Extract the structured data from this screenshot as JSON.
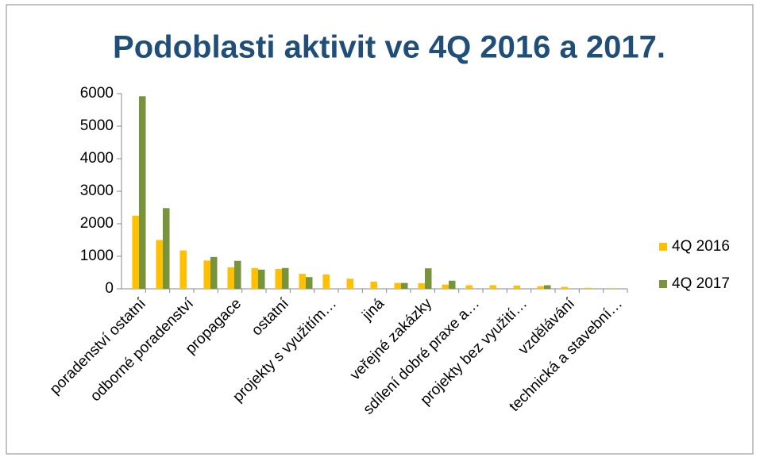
{
  "chart_data": {
    "type": "bar",
    "title": "Podoblasti aktivit ve 4Q 2016 a 2017.",
    "categories": [
      "poradenství ostatní",
      null,
      "odborné poradenství",
      null,
      "propagace",
      null,
      "ostatní",
      null,
      "projekty s využitím…",
      null,
      "jiná",
      null,
      "veřejné zakázky",
      null,
      "sdílení dobré praxe a…",
      null,
      "projekty bez využití…",
      null,
      "vzdělávání",
      null,
      "technická a stavební…"
    ],
    "series": [
      {
        "name": "4Q 2016",
        "color": "#FFC000",
        "values": [
          2250,
          1500,
          1180,
          870,
          660,
          640,
          610,
          460,
          440,
          310,
          220,
          180,
          170,
          130,
          110,
          110,
          100,
          80,
          60,
          30,
          20
        ]
      },
      {
        "name": "4Q 2017",
        "color": "#77933C",
        "values": [
          5920,
          2480,
          0,
          980,
          860,
          590,
          640,
          360,
          0,
          0,
          0,
          180,
          630,
          250,
          0,
          0,
          0,
          110,
          0,
          0,
          0
        ]
      }
    ],
    "ylim": [
      0,
      6000
    ],
    "yticks": [
      0,
      1000,
      2000,
      3000,
      4000,
      5000,
      6000
    ],
    "grid": false,
    "legend": "right"
  }
}
